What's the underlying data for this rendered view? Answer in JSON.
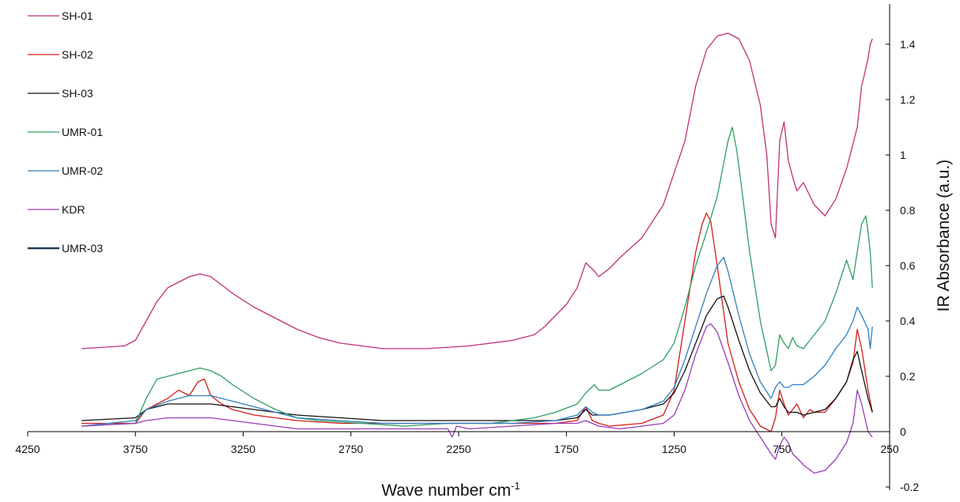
{
  "chart_data": {
    "type": "line",
    "title": "",
    "xlabel": "Wave number cm",
    "xlabel_sup": "-1",
    "ylabel": "IR Absorbance (a.u.)",
    "xlim": [
      4250,
      250
    ],
    "ylim": [
      -0.2,
      1.5
    ],
    "x_reversed": true,
    "x_ticks": [
      4250,
      3750,
      3250,
      2750,
      2250,
      1750,
      1250,
      750,
      250
    ],
    "y_ticks": [
      -0.2,
      0,
      0.2,
      0.4,
      0.6,
      0.8,
      1,
      1.2,
      1.4
    ],
    "y_tick_labels": [
      "-0.2",
      "0",
      "0.2",
      "0.4",
      "0.6",
      "0.8",
      "1",
      "1.2",
      "1.4"
    ],
    "legend_position": "top-left",
    "grid": false,
    "series": [
      {
        "name": "SH-01",
        "color": "#c0307a",
        "x": [
          4000,
          3800,
          3750,
          3700,
          3650,
          3600,
          3500,
          3450,
          3400,
          3350,
          3300,
          3200,
          3100,
          3000,
          2900,
          2800,
          2700,
          2600,
          2400,
          2200,
          2000,
          1900,
          1850,
          1800,
          1750,
          1700,
          1660,
          1620,
          1600,
          1550,
          1500,
          1400,
          1300,
          1200,
          1150,
          1100,
          1050,
          1000,
          950,
          900,
          850,
          820,
          800,
          780,
          760,
          740,
          720,
          700,
          680,
          650,
          600,
          550,
          500,
          450,
          400,
          380,
          370,
          350,
          340,
          330
        ],
        "y": [
          0.3,
          0.31,
          0.33,
          0.4,
          0.47,
          0.52,
          0.56,
          0.57,
          0.56,
          0.53,
          0.5,
          0.45,
          0.41,
          0.37,
          0.34,
          0.32,
          0.31,
          0.3,
          0.3,
          0.31,
          0.33,
          0.35,
          0.38,
          0.42,
          0.46,
          0.52,
          0.61,
          0.58,
          0.56,
          0.59,
          0.63,
          0.7,
          0.82,
          1.05,
          1.25,
          1.38,
          1.43,
          1.44,
          1.42,
          1.34,
          1.18,
          1.0,
          0.75,
          0.7,
          1.05,
          1.12,
          0.98,
          0.92,
          0.87,
          0.9,
          0.82,
          0.78,
          0.84,
          0.95,
          1.1,
          1.25,
          1.28,
          1.35,
          1.4,
          1.42
        ]
      },
      {
        "name": "SH-02",
        "color": "#d21d1d",
        "x": [
          4000,
          3750,
          3700,
          3600,
          3550,
          3500,
          3460,
          3430,
          3400,
          3350,
          3300,
          3200,
          3100,
          3000,
          2800,
          2600,
          2400,
          2200,
          2000,
          1800,
          1700,
          1660,
          1630,
          1600,
          1550,
          1400,
          1300,
          1250,
          1200,
          1150,
          1120,
          1100,
          1080,
          1050,
          1000,
          950,
          900,
          850,
          800,
          780,
          760,
          740,
          720,
          700,
          680,
          650,
          620,
          600,
          550,
          500,
          450,
          420,
          400,
          380,
          350,
          330
        ],
        "y": [
          0.03,
          0.03,
          0.08,
          0.12,
          0.15,
          0.13,
          0.18,
          0.19,
          0.13,
          0.1,
          0.08,
          0.06,
          0.05,
          0.04,
          0.03,
          0.03,
          0.03,
          0.03,
          0.03,
          0.03,
          0.04,
          0.09,
          0.04,
          0.03,
          0.02,
          0.03,
          0.06,
          0.15,
          0.4,
          0.65,
          0.75,
          0.79,
          0.76,
          0.6,
          0.32,
          0.18,
          0.08,
          0.02,
          0.0,
          0.05,
          0.15,
          0.1,
          0.06,
          0.08,
          0.1,
          0.05,
          0.08,
          0.07,
          0.07,
          0.12,
          0.18,
          0.25,
          0.37,
          0.3,
          0.15,
          0.07
        ]
      },
      {
        "name": "SH-03",
        "color": "#111111",
        "x": [
          4000,
          3750,
          3700,
          3600,
          3500,
          3400,
          3300,
          3200,
          3100,
          3000,
          2800,
          2600,
          2400,
          2200,
          2000,
          1800,
          1700,
          1660,
          1630,
          1600,
          1550,
          1400,
          1300,
          1250,
          1200,
          1150,
          1100,
          1050,
          1020,
          1000,
          950,
          900,
          850,
          800,
          780,
          760,
          740,
          720,
          700,
          680,
          650,
          600,
          550,
          500,
          450,
          420,
          400,
          380,
          350,
          330
        ],
        "y": [
          0.04,
          0.05,
          0.08,
          0.1,
          0.1,
          0.1,
          0.09,
          0.08,
          0.07,
          0.06,
          0.05,
          0.04,
          0.04,
          0.04,
          0.04,
          0.04,
          0.05,
          0.08,
          0.06,
          0.06,
          0.06,
          0.08,
          0.1,
          0.14,
          0.22,
          0.32,
          0.42,
          0.48,
          0.49,
          0.45,
          0.33,
          0.22,
          0.14,
          0.09,
          0.09,
          0.12,
          0.09,
          0.07,
          0.07,
          0.07,
          0.06,
          0.07,
          0.08,
          0.12,
          0.18,
          0.26,
          0.29,
          0.22,
          0.12,
          0.07
        ]
      },
      {
        "name": "UMR-01",
        "color": "#2f9e62",
        "x": [
          4000,
          3750,
          3700,
          3650,
          3600,
          3500,
          3450,
          3400,
          3350,
          3300,
          3200,
          3100,
          3000,
          2900,
          2700,
          2500,
          2300,
          2100,
          1900,
          1800,
          1700,
          1660,
          1620,
          1600,
          1550,
          1500,
          1400,
          1300,
          1250,
          1200,
          1150,
          1100,
          1050,
          1000,
          980,
          960,
          940,
          900,
          850,
          800,
          780,
          760,
          740,
          720,
          700,
          680,
          650,
          600,
          550,
          500,
          450,
          420,
          400,
          380,
          360,
          350,
          340,
          330
        ],
        "y": [
          0.02,
          0.03,
          0.12,
          0.19,
          0.2,
          0.22,
          0.23,
          0.22,
          0.2,
          0.17,
          0.12,
          0.08,
          0.05,
          0.04,
          0.03,
          0.02,
          0.03,
          0.03,
          0.05,
          0.07,
          0.1,
          0.14,
          0.17,
          0.15,
          0.15,
          0.17,
          0.21,
          0.26,
          0.32,
          0.45,
          0.6,
          0.72,
          0.85,
          1.05,
          1.1,
          1.02,
          0.9,
          0.65,
          0.4,
          0.22,
          0.24,
          0.35,
          0.32,
          0.3,
          0.34,
          0.31,
          0.3,
          0.35,
          0.4,
          0.5,
          0.62,
          0.55,
          0.65,
          0.75,
          0.78,
          0.72,
          0.65,
          0.52
        ]
      },
      {
        "name": "UMR-02",
        "color": "#2f7fc1",
        "x": [
          4000,
          3750,
          3700,
          3600,
          3500,
          3400,
          3300,
          3200,
          3100,
          3000,
          2800,
          2600,
          2400,
          2200,
          2000,
          1800,
          1700,
          1660,
          1630,
          1600,
          1550,
          1400,
          1300,
          1250,
          1200,
          1150,
          1100,
          1050,
          1020,
          1000,
          950,
          900,
          850,
          800,
          780,
          760,
          740,
          720,
          700,
          680,
          650,
          600,
          550,
          500,
          450,
          420,
          400,
          380,
          350,
          340,
          330
        ],
        "y": [
          0.02,
          0.04,
          0.08,
          0.11,
          0.13,
          0.13,
          0.11,
          0.09,
          0.07,
          0.05,
          0.04,
          0.03,
          0.03,
          0.03,
          0.03,
          0.04,
          0.06,
          0.09,
          0.07,
          0.06,
          0.06,
          0.08,
          0.11,
          0.16,
          0.26,
          0.38,
          0.5,
          0.6,
          0.63,
          0.58,
          0.42,
          0.28,
          0.18,
          0.12,
          0.16,
          0.18,
          0.16,
          0.16,
          0.17,
          0.17,
          0.17,
          0.2,
          0.24,
          0.3,
          0.35,
          0.4,
          0.45,
          0.42,
          0.37,
          0.3,
          0.38
        ]
      },
      {
        "name": "KDR",
        "color": "#9a3cb8",
        "x": [
          4000,
          3750,
          3700,
          3600,
          3500,
          3400,
          3300,
          3200,
          3100,
          3000,
          2800,
          2600,
          2400,
          2300,
          2280,
          2260,
          2200,
          2000,
          1800,
          1700,
          1660,
          1600,
          1500,
          1400,
          1300,
          1250,
          1200,
          1150,
          1100,
          1080,
          1050,
          1000,
          950,
          900,
          850,
          800,
          780,
          760,
          740,
          720,
          700,
          650,
          600,
          550,
          500,
          450,
          420,
          400,
          380,
          350,
          330
        ],
        "y": [
          0.02,
          0.03,
          0.04,
          0.05,
          0.05,
          0.05,
          0.04,
          0.03,
          0.02,
          0.01,
          0.01,
          0.01,
          0.01,
          0.01,
          -0.02,
          0.02,
          0.01,
          0.02,
          0.03,
          0.03,
          0.04,
          0.02,
          0.01,
          0.02,
          0.03,
          0.06,
          0.15,
          0.28,
          0.38,
          0.39,
          0.36,
          0.25,
          0.13,
          0.04,
          -0.02,
          -0.08,
          -0.1,
          -0.05,
          -0.02,
          -0.04,
          -0.08,
          -0.12,
          -0.15,
          -0.14,
          -0.1,
          -0.04,
          0.03,
          0.15,
          0.1,
          0.0,
          -0.02
        ]
      },
      {
        "name": "UMR-03",
        "color": "#1f3b5a",
        "x": [],
        "y": []
      }
    ]
  }
}
